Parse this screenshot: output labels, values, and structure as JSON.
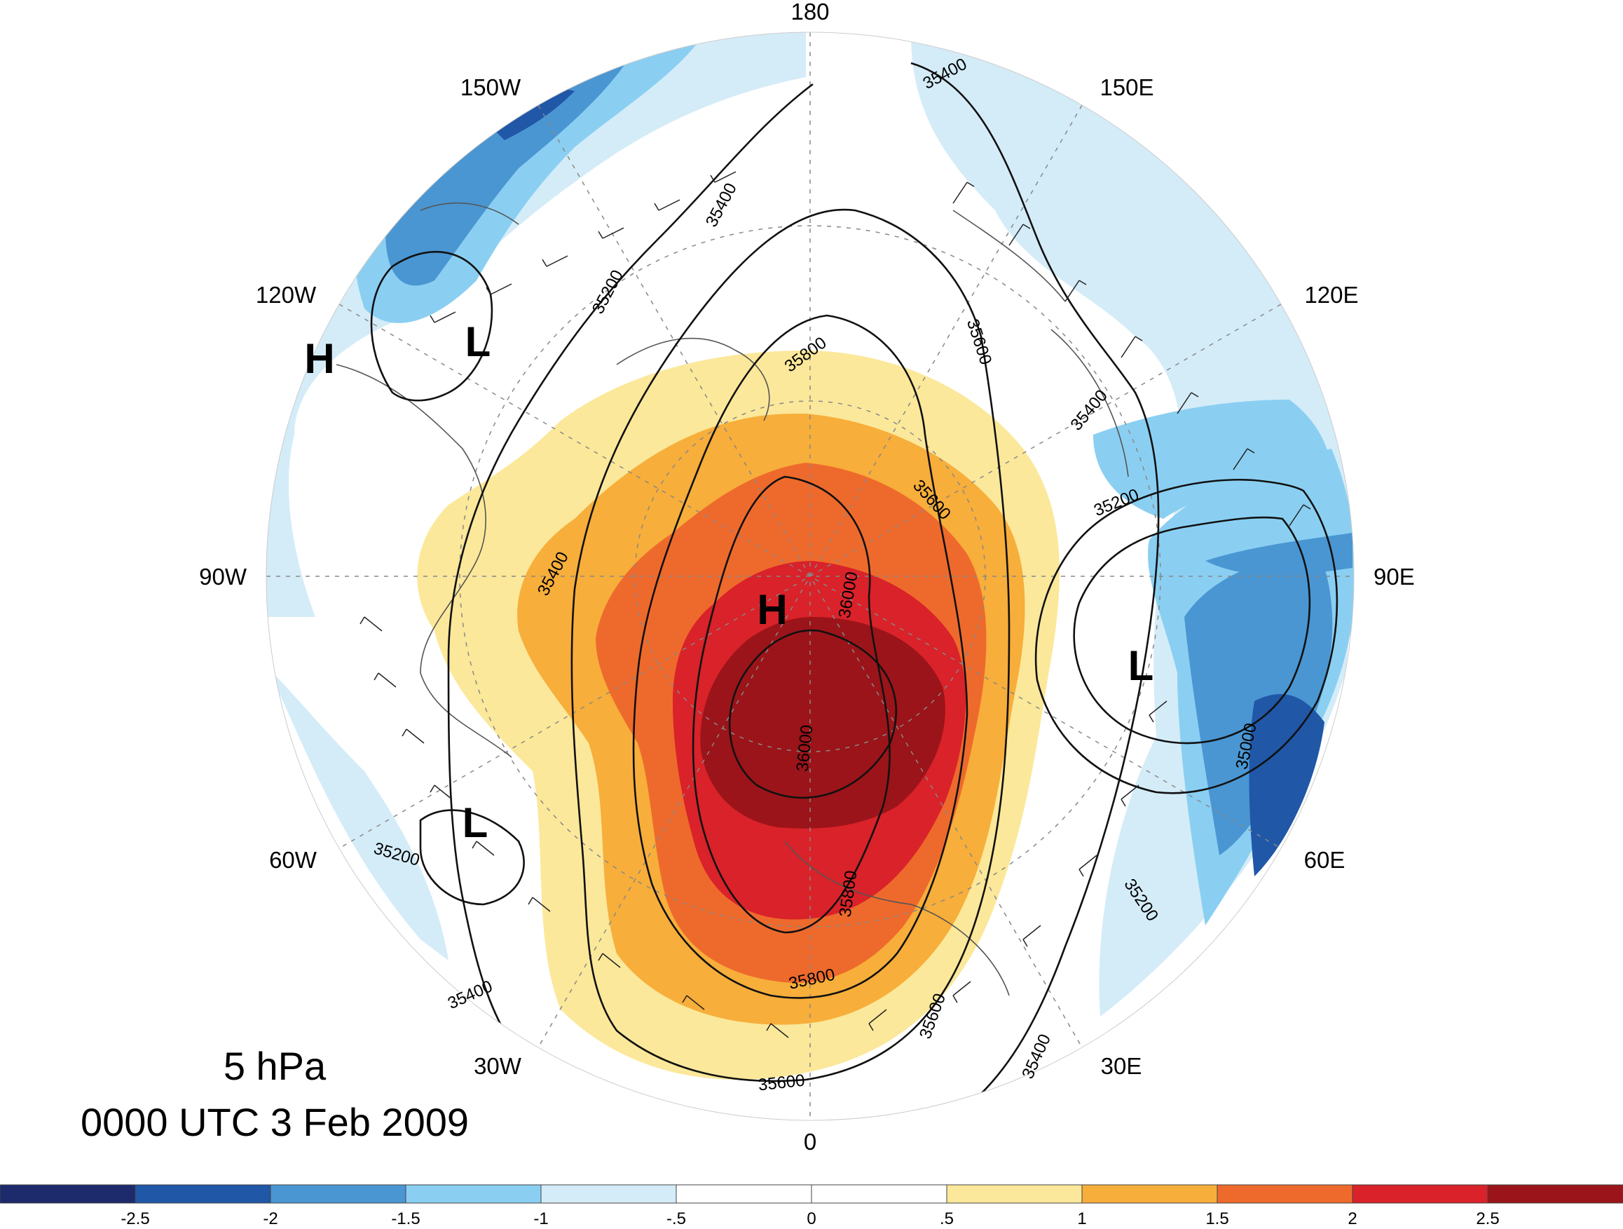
{
  "title": {
    "level": "5 hPa",
    "time": "0000 UTC 3 Feb 2009"
  },
  "longitude_labels": [
    "180",
    "150E",
    "120E",
    "90E",
    "60E",
    "30E",
    "0",
    "30W",
    "60W",
    "90W",
    "120W",
    "150W"
  ],
  "pressure_centers": [
    "H",
    "L",
    "H",
    "L",
    "L"
  ],
  "contour_labels": [
    "35400",
    "35400",
    "35200",
    "35800",
    "35600",
    "35400",
    "35600",
    "35200",
    "35400",
    "36000",
    "36000",
    "35800",
    "35800",
    "35600",
    "35600",
    "35000",
    "35200",
    "35200",
    "35400",
    "35400"
  ],
  "colorbar": {
    "colors": [
      "#1d2a6b",
      "#2057a7",
      "#4a96d2",
      "#8acff2",
      "#d4ecf8",
      "#ffffff",
      "#ffffff",
      "#fbe89a",
      "#f7ae3a",
      "#ee6a2c",
      "#d92229",
      "#9b1419"
    ],
    "tick_labels": [
      "-2.5",
      "-2",
      "-1.5",
      "-1",
      "-.5",
      "0",
      ".5",
      "1",
      "1.5",
      "2",
      "2.5"
    ]
  }
}
